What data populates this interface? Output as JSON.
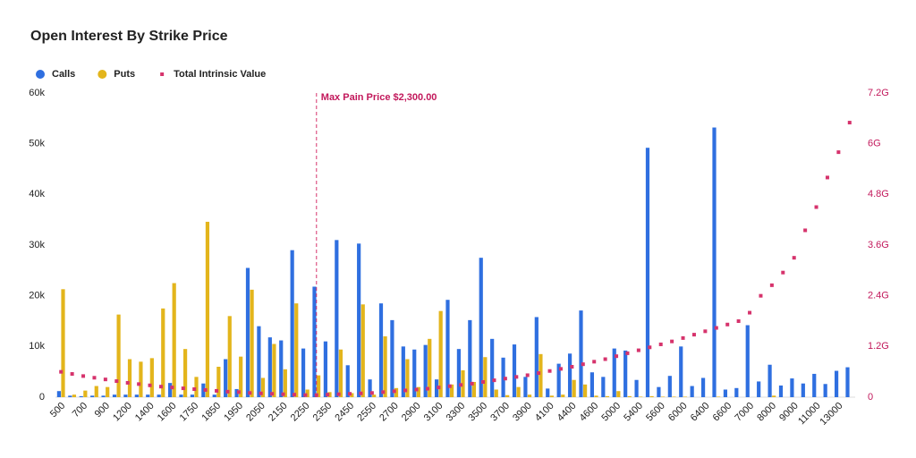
{
  "chart_data": {
    "type": "bar",
    "title": "Open Interest By Strike Price",
    "categories": [
      "500",
      null,
      "700",
      null,
      "900",
      null,
      "1200",
      null,
      "1400",
      null,
      "1600",
      null,
      "1750",
      null,
      "1850",
      null,
      "1950",
      null,
      "2050",
      null,
      "2150",
      null,
      "2250",
      null,
      "2350",
      null,
      "2450",
      null,
      "2550",
      null,
      "2700",
      null,
      "2900",
      null,
      "3100",
      null,
      "3300",
      null,
      "3500",
      null,
      "3700",
      null,
      "3900",
      null,
      "4100",
      null,
      "4400",
      null,
      "4600",
      null,
      "5000",
      null,
      "5400",
      null,
      "5600",
      null,
      "6000",
      null,
      "6400",
      null,
      "6600",
      null,
      "7000",
      null,
      "8000",
      null,
      "9000",
      null,
      "11000",
      null,
      "13000",
      null
    ],
    "series": [
      {
        "name": "Calls",
        "type": "bar",
        "color": "#2f6fe0",
        "values": [
          1.2,
          0.3,
          0.2,
          0.3,
          0.3,
          0.5,
          0.5,
          0.5,
          0.5,
          0.5,
          2.8,
          0.5,
          0.5,
          2.7,
          0.5,
          7.5,
          1.6,
          25.5,
          14.0,
          11.8,
          11.2,
          29.0,
          9.6,
          21.8,
          11.0,
          31.0,
          6.3,
          30.3,
          3.5,
          18.5,
          15.2,
          10.0,
          9.4,
          10.3,
          3.5,
          19.2,
          9.5,
          15.2,
          27.5,
          11.5,
          7.8,
          10.4,
          4.0,
          15.8,
          1.7,
          6.6,
          8.6,
          17.1,
          4.9,
          4.0,
          9.6,
          9.2,
          3.4,
          49.2,
          2.0,
          4.2,
          10.0,
          2.2,
          3.8,
          53.2,
          1.5,
          1.8,
          14.2,
          3.1,
          6.4,
          2.3,
          3.7,
          2.7,
          4.6,
          2.6,
          5.2,
          5.9
        ]
      },
      {
        "name": "Puts",
        "type": "bar",
        "color": "#e3b51c",
        "values": [
          21.3,
          0.5,
          1.3,
          2.2,
          2.0,
          16.3,
          7.5,
          7.0,
          7.7,
          17.5,
          22.5,
          9.5,
          4.0,
          34.6,
          6.0,
          16.0,
          8.0,
          21.2,
          3.8,
          10.5,
          5.5,
          18.5,
          1.5,
          4.3,
          1.0,
          9.4,
          0.8,
          18.3,
          0.5,
          12.0,
          1.8,
          7.5,
          2.0,
          11.5,
          17.0,
          2.5,
          5.3,
          3.0,
          7.9,
          1.5,
          0.4,
          2.0,
          0.5,
          8.5,
          0.3,
          0.5,
          3.4,
          2.5,
          0.3,
          0.2,
          1.2,
          0.2,
          0.1,
          0.2,
          0.1,
          0.1,
          0.1,
          0,
          0,
          0.1,
          0,
          0,
          0,
          0,
          0.3,
          0,
          0,
          0,
          0,
          0,
          0,
          0
        ]
      },
      {
        "name": "Total Intrinsic Value",
        "type": "scatter",
        "axis": "y2",
        "color": "#d6336c",
        "values": [
          0.6,
          0.55,
          0.5,
          0.46,
          0.42,
          0.38,
          0.34,
          0.31,
          0.28,
          0.25,
          0.23,
          0.21,
          0.19,
          0.17,
          0.15,
          0.13,
          0.12,
          0.1,
          0.09,
          0.08,
          0.07,
          0.06,
          0.05,
          0.05,
          0.06,
          0.07,
          0.08,
          0.09,
          0.1,
          0.12,
          0.14,
          0.16,
          0.18,
          0.2,
          0.23,
          0.26,
          0.29,
          0.32,
          0.36,
          0.4,
          0.44,
          0.48,
          0.52,
          0.57,
          0.62,
          0.67,
          0.72,
          0.78,
          0.84,
          0.9,
          0.97,
          1.04,
          1.11,
          1.18,
          1.25,
          1.32,
          1.4,
          1.48,
          1.56,
          1.64,
          1.72,
          1.8,
          2.0,
          2.4,
          2.65,
          2.95,
          3.3,
          3.95,
          4.5,
          5.2,
          5.8,
          6.5
        ]
      }
    ],
    "ylim": [
      0,
      60
    ],
    "yticks": [
      0,
      {
        "value": 10,
        "label": "10k"
      },
      {
        "value": 20,
        "label": "20k"
      },
      {
        "value": 30,
        "label": "30k"
      },
      {
        "value": 40,
        "label": "40k"
      },
      {
        "value": 50,
        "label": "50k"
      },
      {
        "value": 60,
        "label": "60k"
      }
    ],
    "y2lim": [
      0,
      7.2
    ],
    "y2ticks": [
      0,
      {
        "value": 1.2,
        "label": "1.2G"
      },
      {
        "value": 2.4,
        "label": "2.4G"
      },
      {
        "value": 3.6,
        "label": "3.6G"
      },
      {
        "value": 4.8,
        "label": "4.8G"
      },
      {
        "value": 6,
        "label": "6G"
      },
      {
        "value": 7.2,
        "label": "7.2G"
      }
    ],
    "annotation": {
      "text": "Max Pain Price $2,300.00",
      "x": 2300
    }
  }
}
